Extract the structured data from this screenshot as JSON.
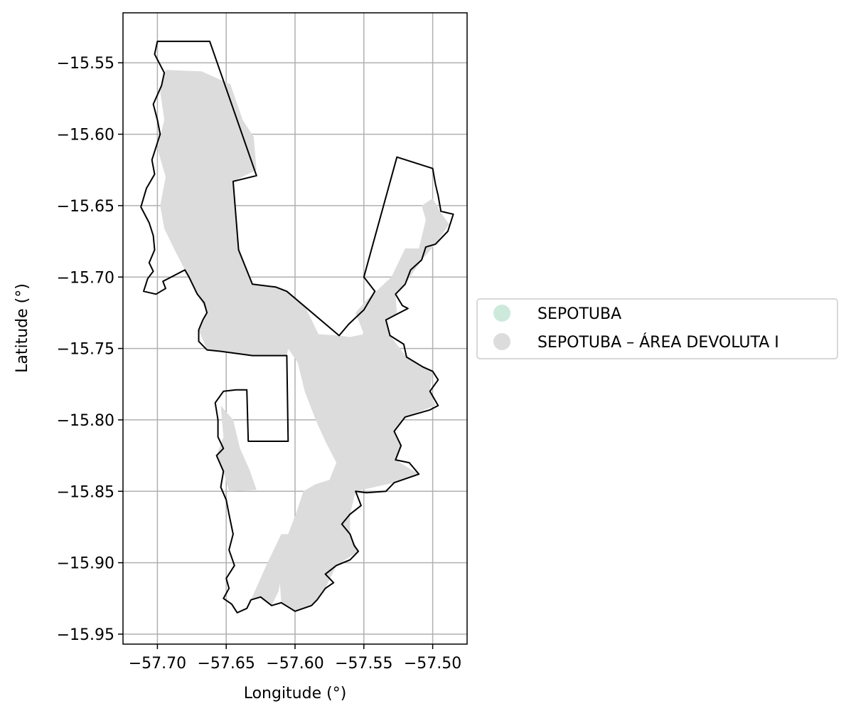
{
  "chart_data": {
    "type": "map",
    "xlabel": "Longitude (°)",
    "ylabel": "Latitude (°)",
    "xlim": [
      -57.725,
      -57.475
    ],
    "ylim": [
      -15.957,
      -15.515
    ],
    "grid": true,
    "x_ticks": [
      {
        "value": -57.7,
        "label": "−57.70"
      },
      {
        "value": -57.65,
        "label": "−57.65"
      },
      {
        "value": -57.6,
        "label": "−57.60"
      },
      {
        "value": -57.55,
        "label": "−57.55"
      },
      {
        "value": -57.5,
        "label": "−57.50"
      }
    ],
    "y_ticks": [
      {
        "value": -15.55,
        "label": "−15.55"
      },
      {
        "value": -15.6,
        "label": "−15.60"
      },
      {
        "value": -15.65,
        "label": "−15.65"
      },
      {
        "value": -15.7,
        "label": "−15.70"
      },
      {
        "value": -15.75,
        "label": "−15.75"
      },
      {
        "value": -15.8,
        "label": "−15.80"
      },
      {
        "value": -15.85,
        "label": "−15.85"
      },
      {
        "value": -15.9,
        "label": "−15.90"
      },
      {
        "value": -15.95,
        "label": "−15.95"
      }
    ],
    "legend": {
      "placement": "center-right-outside",
      "entries": [
        {
          "label": "SEPOTUBA",
          "color": "#cde9dc"
        },
        {
          "label": "SEPOTUBA – ÁREA DEVOLUTA I",
          "color": "#dcdcdc"
        }
      ]
    },
    "boundary_color": "#000000",
    "fill_color": "#dcdcdc",
    "boundary": [
      [
        -57.7,
        -15.535
      ],
      [
        -57.662,
        -15.535
      ],
      [
        -57.628,
        -15.629
      ],
      [
        -57.645,
        -15.633
      ],
      [
        -57.641,
        -15.681
      ],
      [
        -57.631,
        -15.705
      ],
      [
        -57.614,
        -15.707
      ],
      [
        -57.606,
        -15.71
      ],
      [
        -57.568,
        -15.741
      ],
      [
        -57.561,
        -15.733
      ],
      [
        -57.55,
        -15.723
      ],
      [
        -57.542,
        -15.71
      ],
      [
        -57.55,
        -15.7
      ],
      [
        -57.526,
        -15.616
      ],
      [
        -57.5,
        -15.624
      ],
      [
        -57.498,
        -15.635
      ],
      [
        -57.496,
        -15.643
      ],
      [
        -57.494,
        -15.654
      ],
      [
        -57.485,
        -15.656
      ],
      [
        -57.489,
        -15.668
      ],
      [
        -57.498,
        -15.677
      ],
      [
        -57.505,
        -15.679
      ],
      [
        -57.508,
        -15.688
      ],
      [
        -57.516,
        -15.695
      ],
      [
        -57.52,
        -15.705
      ],
      [
        -57.527,
        -15.712
      ],
      [
        -57.522,
        -15.72
      ],
      [
        -57.518,
        -15.722
      ],
      [
        -57.526,
        -15.726
      ],
      [
        -57.534,
        -15.73
      ],
      [
        -57.531,
        -15.741
      ],
      [
        -57.521,
        -15.747
      ],
      [
        -57.519,
        -15.756
      ],
      [
        -57.507,
        -15.763
      ],
      [
        -57.5,
        -15.766
      ],
      [
        -57.496,
        -15.772
      ],
      [
        -57.502,
        -15.78
      ],
      [
        -57.496,
        -15.79
      ],
      [
        -57.502,
        -15.793
      ],
      [
        -57.52,
        -15.798
      ],
      [
        -57.528,
        -15.808
      ],
      [
        -57.523,
        -15.818
      ],
      [
        -57.527,
        -15.828
      ],
      [
        -57.517,
        -15.83
      ],
      [
        -57.51,
        -15.838
      ],
      [
        -57.528,
        -15.844
      ],
      [
        -57.534,
        -15.85
      ],
      [
        -57.548,
        -15.851
      ],
      [
        -57.556,
        -15.85
      ],
      [
        -57.552,
        -15.86
      ],
      [
        -57.56,
        -15.866
      ],
      [
        -57.566,
        -15.873
      ],
      [
        -57.56,
        -15.88
      ],
      [
        -57.557,
        -15.888
      ],
      [
        -57.554,
        -15.892
      ],
      [
        -57.56,
        -15.898
      ],
      [
        -57.57,
        -15.902
      ],
      [
        -57.578,
        -15.908
      ],
      [
        -57.572,
        -15.914
      ],
      [
        -57.578,
        -15.918
      ],
      [
        -57.584,
        -15.926
      ],
      [
        -57.588,
        -15.93
      ],
      [
        -57.6,
        -15.934
      ],
      [
        -57.61,
        -15.928
      ],
      [
        -57.617,
        -15.93
      ],
      [
        -57.625,
        -15.924
      ],
      [
        -57.632,
        -15.926
      ],
      [
        -57.635,
        -15.932
      ],
      [
        -57.642,
        -15.935
      ],
      [
        -57.646,
        -15.929
      ],
      [
        -57.652,
        -15.925
      ],
      [
        -57.648,
        -15.918
      ],
      [
        -57.65,
        -15.911
      ],
      [
        -57.644,
        -15.902
      ],
      [
        -57.648,
        -15.891
      ],
      [
        -57.645,
        -15.88
      ],
      [
        -57.648,
        -15.866
      ],
      [
        -57.65,
        -15.856
      ],
      [
        -57.654,
        -15.847
      ],
      [
        -57.652,
        -15.836
      ],
      [
        -57.657,
        -15.825
      ],
      [
        -57.652,
        -15.82
      ],
      [
        -57.656,
        -15.812
      ],
      [
        -57.656,
        -15.8
      ],
      [
        -57.658,
        -15.788
      ],
      [
        -57.652,
        -15.78
      ],
      [
        -57.643,
        -15.779
      ],
      [
        -57.635,
        -15.779
      ],
      [
        -57.634,
        -15.815
      ],
      [
        -57.605,
        -15.815
      ],
      [
        -57.606,
        -15.755
      ],
      [
        -57.631,
        -15.755
      ],
      [
        -57.654,
        -15.752
      ],
      [
        -57.664,
        -15.751
      ],
      [
        -57.67,
        -15.745
      ],
      [
        -57.67,
        -15.737
      ],
      [
        -57.667,
        -15.73
      ],
      [
        -57.664,
        -15.725
      ],
      [
        -57.666,
        -15.718
      ],
      [
        -57.671,
        -15.712
      ],
      [
        -57.674,
        -15.706
      ],
      [
        -57.677,
        -15.7
      ],
      [
        -57.68,
        -15.695
      ],
      [
        -57.69,
        -15.7
      ],
      [
        -57.696,
        -15.703
      ],
      [
        -57.694,
        -15.708
      ],
      [
        -57.701,
        -15.712
      ],
      [
        -57.71,
        -15.71
      ],
      [
        -57.707,
        -15.701
      ],
      [
        -57.703,
        -15.696
      ],
      [
        -57.706,
        -15.69
      ],
      [
        -57.702,
        -15.681
      ],
      [
        -57.703,
        -15.671
      ],
      [
        -57.706,
        -15.662
      ],
      [
        -57.712,
        -15.651
      ],
      [
        -57.708,
        -15.638
      ],
      [
        -57.702,
        -15.628
      ],
      [
        -57.704,
        -15.618
      ],
      [
        -57.701,
        -15.609
      ],
      [
        -57.698,
        -15.6
      ],
      [
        -57.7,
        -15.59
      ],
      [
        -57.703,
        -15.579
      ],
      [
        -57.697,
        -15.566
      ],
      [
        -57.695,
        -15.557
      ],
      [
        -57.702,
        -15.544
      ],
      [
        -57.7,
        -15.535
      ]
    ],
    "shaded_regions": [
      [
        [
          -57.694,
          -15.555
        ],
        [
          -57.668,
          -15.556
        ],
        [
          -57.647,
          -15.565
        ],
        [
          -57.638,
          -15.59
        ],
        [
          -57.63,
          -15.602
        ],
        [
          -57.628,
          -15.625
        ],
        [
          -57.645,
          -15.633
        ],
        [
          -57.641,
          -15.681
        ],
        [
          -57.631,
          -15.705
        ],
        [
          -57.614,
          -15.707
        ],
        [
          -57.606,
          -15.71
        ],
        [
          -57.592,
          -15.722
        ],
        [
          -57.583,
          -15.74
        ],
        [
          -57.568,
          -15.741
        ],
        [
          -57.56,
          -15.742
        ],
        [
          -57.55,
          -15.74
        ],
        [
          -57.556,
          -15.725
        ],
        [
          -57.548,
          -15.716
        ],
        [
          -57.541,
          -15.71
        ],
        [
          -57.53,
          -15.7
        ],
        [
          -57.52,
          -15.68
        ],
        [
          -57.51,
          -15.68
        ],
        [
          -57.505,
          -15.66
        ],
        [
          -57.508,
          -15.65
        ],
        [
          -57.5,
          -15.645
        ],
        [
          -57.494,
          -15.655
        ],
        [
          -57.488,
          -15.663
        ],
        [
          -57.498,
          -15.677
        ],
        [
          -57.508,
          -15.688
        ],
        [
          -57.52,
          -15.705
        ],
        [
          -57.527,
          -15.712
        ],
        [
          -57.526,
          -15.726
        ],
        [
          -57.534,
          -15.73
        ],
        [
          -57.531,
          -15.741
        ],
        [
          -57.519,
          -15.756
        ],
        [
          -57.5,
          -15.766
        ],
        [
          -57.502,
          -15.78
        ],
        [
          -57.498,
          -15.79
        ],
        [
          -57.52,
          -15.798
        ],
        [
          -57.528,
          -15.808
        ],
        [
          -57.523,
          -15.818
        ],
        [
          -57.527,
          -15.828
        ],
        [
          -57.51,
          -15.838
        ],
        [
          -57.528,
          -15.844
        ],
        [
          -57.556,
          -15.85
        ],
        [
          -57.56,
          -15.866
        ],
        [
          -57.56,
          -15.88
        ],
        [
          -57.554,
          -15.892
        ],
        [
          -57.57,
          -15.902
        ],
        [
          -57.578,
          -15.918
        ],
        [
          -57.588,
          -15.93
        ],
        [
          -57.6,
          -15.934
        ],
        [
          -57.61,
          -15.928
        ],
        [
          -57.612,
          -15.9
        ],
        [
          -57.605,
          -15.88
        ],
        [
          -57.598,
          -15.862
        ],
        [
          -57.594,
          -15.85
        ],
        [
          -57.585,
          -15.845
        ],
        [
          -57.575,
          -15.842
        ],
        [
          -57.57,
          -15.83
        ],
        [
          -57.578,
          -15.815
        ],
        [
          -57.585,
          -15.8
        ],
        [
          -57.593,
          -15.78
        ],
        [
          -57.598,
          -15.76
        ],
        [
          -57.605,
          -15.75
        ],
        [
          -57.606,
          -15.755
        ],
        [
          -57.631,
          -15.755
        ],
        [
          -57.654,
          -15.752
        ],
        [
          -57.664,
          -15.751
        ],
        [
          -57.67,
          -15.737
        ],
        [
          -57.664,
          -15.725
        ],
        [
          -57.674,
          -15.706
        ],
        [
          -57.68,
          -15.695
        ],
        [
          -57.688,
          -15.68
        ],
        [
          -57.695,
          -15.666
        ],
        [
          -57.698,
          -15.65
        ],
        [
          -57.694,
          -15.63
        ],
        [
          -57.7,
          -15.61
        ],
        [
          -57.695,
          -15.59
        ],
        [
          -57.698,
          -15.57
        ]
      ],
      [
        [
          -57.654,
          -15.79
        ],
        [
          -57.645,
          -15.8
        ],
        [
          -57.64,
          -15.82
        ],
        [
          -57.633,
          -15.835
        ],
        [
          -57.628,
          -15.849
        ],
        [
          -57.648,
          -15.85
        ],
        [
          -57.652,
          -15.836
        ],
        [
          -57.657,
          -15.825
        ],
        [
          -57.652,
          -15.812
        ]
      ],
      [
        [
          -57.617,
          -15.93
        ],
        [
          -57.625,
          -15.924
        ],
        [
          -57.632,
          -15.926
        ],
        [
          -57.62,
          -15.9
        ],
        [
          -57.61,
          -15.88
        ],
        [
          -57.603,
          -15.88
        ],
        [
          -57.608,
          -15.9
        ],
        [
          -57.612,
          -15.92
        ]
      ]
    ]
  }
}
